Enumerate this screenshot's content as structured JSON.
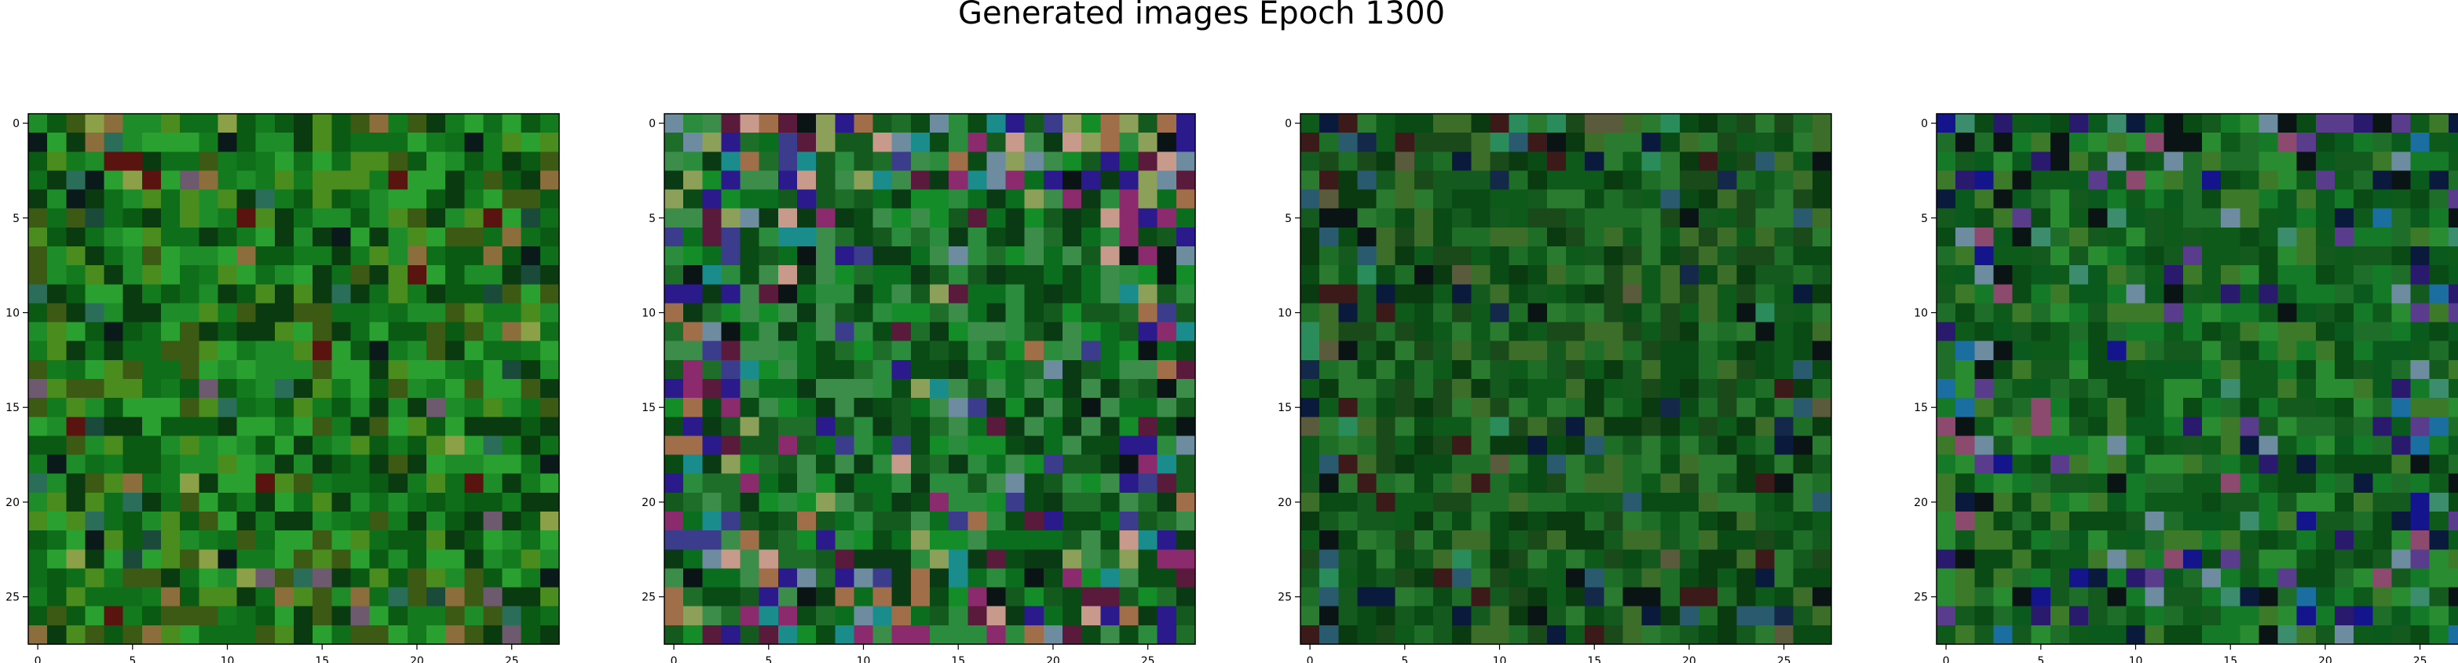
{
  "figure": {
    "title": "Generated images Epoch 1300"
  },
  "axes": {
    "ticks": [
      0,
      5,
      10,
      15,
      20,
      25
    ]
  },
  "panels": [
    {
      "id": "sample-1",
      "palette": [
        "#0a5a14",
        "#147a1e",
        "#1e8c28",
        "#0e6e1a",
        "#2aa030",
        "#4a8c1e",
        "#3c5a14",
        "#0a3a10"
      ],
      "accents": [
        "#5a1410",
        "#8c6e3c",
        "#6e5a6e",
        "#2a6e5a",
        "#0a1a1a",
        "#8ca048",
        "#1a4a3a"
      ],
      "accent_rate": 0.1,
      "seed": 11
    },
    {
      "id": "sample-2",
      "palette": [
        "#0a6e1e",
        "#148c28",
        "#0a4a14",
        "#1e6e2a",
        "#2a8c3c",
        "#0a3a14",
        "#3c8c4a",
        "#145a1e"
      ],
      "accents": [
        "#2a1a8c",
        "#8c2a6e",
        "#0a1414",
        "#6e8ca0",
        "#a06e48",
        "#3c3c8c",
        "#8ca05a",
        "#5a1a3c",
        "#1a8c8c",
        "#c89a8c"
      ],
      "accent_rate": 0.3,
      "seed": 23
    },
    {
      "id": "sample-3",
      "palette": [
        "#0a4a14",
        "#145a1e",
        "#1e6e28",
        "#0a3a10",
        "#2a7a30",
        "#0e5a1a",
        "#3c6e2a",
        "#1a4a1a"
      ],
      "accents": [
        "#0a1a3c",
        "#14284a",
        "#3c1a1a",
        "#2a5a6e",
        "#0a1414",
        "#5a5a3c",
        "#2a8c5a"
      ],
      "accent_rate": 0.14,
      "seed": 37
    },
    {
      "id": "sample-4",
      "palette": [
        "#0a5a1e",
        "#147a28",
        "#0a4a14",
        "#1e6e2a",
        "#2a8c30",
        "#0e5a1a",
        "#145a1e",
        "#3c7a2a"
      ],
      "accents": [
        "#14148c",
        "#2a1a6e",
        "#5a3c8c",
        "#0a1a3c",
        "#6e8ca0",
        "#3c8c6e",
        "#0a1414",
        "#8c4a6e",
        "#1a6ea0"
      ],
      "accent_rate": 0.2,
      "seed": 53
    }
  ]
}
